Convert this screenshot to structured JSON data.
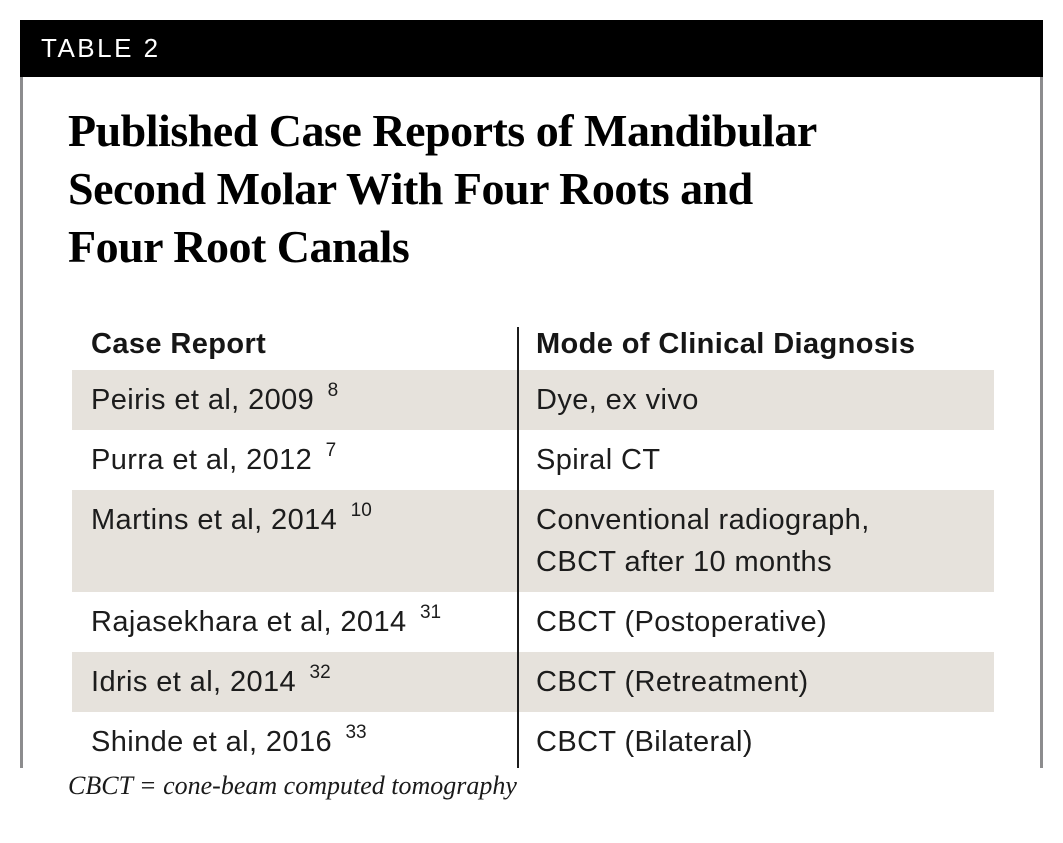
{
  "table_label": "TABLE 2",
  "title_lines": [
    "Published Case Reports of Mandibular",
    "Second Molar With Four Roots and",
    "Four Root Canals"
  ],
  "table": {
    "columns": [
      "Case Report",
      "Mode of Clinical Diagnosis"
    ],
    "rows": [
      {
        "case_text": "Peiris et al, 2009",
        "case_sup": "8",
        "diagnosis_lines": [
          "Dye, ex vivo"
        ],
        "shaded": true
      },
      {
        "case_text": "Purra et al, 2012",
        "case_sup": "7",
        "diagnosis_lines": [
          "Spiral CT"
        ],
        "shaded": false
      },
      {
        "case_text": "Martins et al, 2014",
        "case_sup": "10",
        "diagnosis_lines": [
          "Conventional radiograph,",
          "CBCT after 10 months"
        ],
        "shaded": true
      },
      {
        "case_text": "Rajasekhara et al, 2014",
        "case_sup": "31",
        "diagnosis_lines": [
          "CBCT (Postoperative)"
        ],
        "shaded": false
      },
      {
        "case_text": "Idris et al, 2014",
        "case_sup": "32",
        "diagnosis_lines": [
          "CBCT (Retreatment)"
        ],
        "shaded": true
      },
      {
        "case_text": "Shinde et al, 2016",
        "case_sup": "33",
        "diagnosis_lines": [
          "CBCT (Bilateral)"
        ],
        "shaded": false
      }
    ]
  },
  "footnote": "CBCT = cone-beam computed tomography",
  "colors": {
    "header_bar": "#000000",
    "header_bar_text": "#ffffff",
    "row_shade": "#e6e2dc",
    "panel_border": "#8c8c8e",
    "column_divider": "#1c1c1c",
    "text": "#1c1c1c"
  }
}
